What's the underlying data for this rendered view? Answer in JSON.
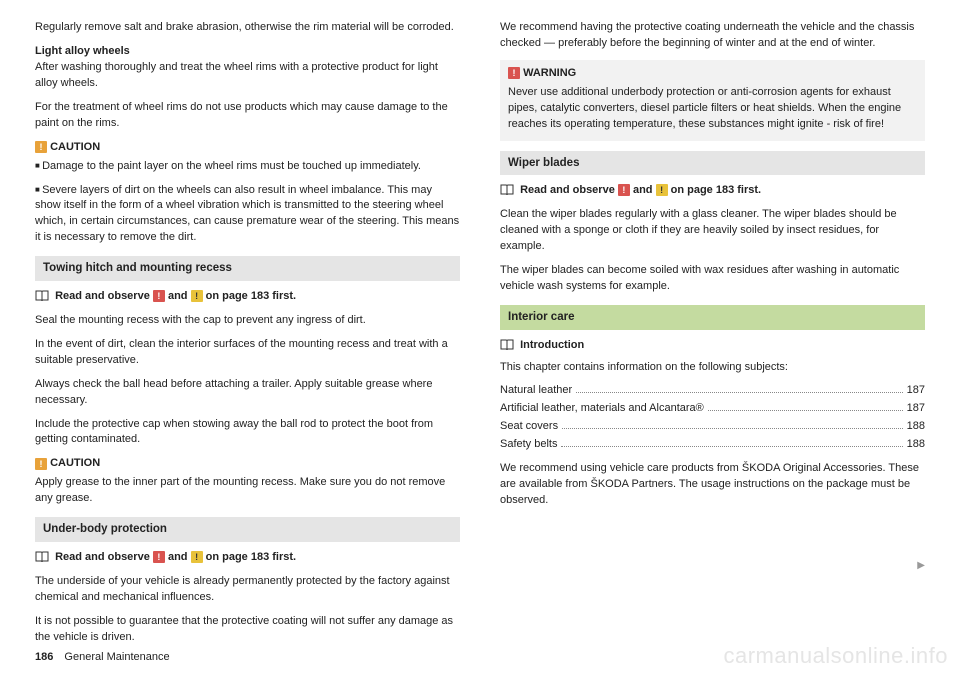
{
  "left": {
    "p1": "Regularly remove salt and brake abrasion, otherwise the rim material will be corroded.",
    "h1": "Light alloy wheels",
    "p2": "After washing thoroughly and treat the wheel rims with a protective product for light alloy wheels.",
    "p3": "For the treatment of wheel rims do not use products which may cause damage to the paint on the rims.",
    "caution1": "CAUTION",
    "c1a": "Damage to the paint layer on the wheel rims must be touched up immediately.",
    "c1b": "Severe layers of dirt on the wheels can also result in wheel imbalance. This may show itself in the form of a wheel vibration which is transmitted to the steering wheel which, in certain circumstances, can cause premature wear of the steering. This means it is necessary to remove the dirt.",
    "sec1": "Towing hitch and mounting recess",
    "read1a": "Read and observe ",
    "read1b": " and ",
    "read1c": " on page 183 first.",
    "p4": "Seal the mounting recess with the cap to prevent any ingress of dirt.",
    "p5": "In the event of dirt, clean the interior surfaces of the mounting recess and treat with a suitable preservative.",
    "p6": "Always check the ball head before attaching a trailer. Apply suitable grease where necessary.",
    "p7": "Include the protective cap when stowing away the ball rod to protect the boot from getting contaminated.",
    "caution2": "CAUTION",
    "c2": "Apply grease to the inner part of the mounting recess. Make sure you do not remove any grease.",
    "sec2": "Under-body protection",
    "read2a": "Read and observe ",
    "read2b": " and ",
    "read2c": " on page 183 first.",
    "p8": "The underside of your vehicle is already permanently protected by the factory against chemical and mechanical influences.",
    "p9": "It is not possible to guarantee that the protective coating will not suffer any damage as the vehicle is driven."
  },
  "right": {
    "p1": "We recommend having the protective coating underneath the vehicle and the chassis checked — preferably before the beginning of winter and at the end of winter.",
    "warnhead": "WARNING",
    "warnbody": "Never use additional underbody protection or anti-corrosion agents for exhaust pipes, catalytic converters, diesel particle filters or heat shields. When the engine reaches its operating temperature, these substances might ignite - risk of fire!",
    "sec1": "Wiper blades",
    "read1a": "Read and observe ",
    "read1b": " and ",
    "read1c": " on page 183 first.",
    "p2": "Clean the wiper blades regularly with a glass cleaner. The wiper blades should be cleaned with a sponge or cloth if they are heavily soiled by insect residues, for example.",
    "p3": "The wiper blades can become soiled with wax residues after washing in automatic vehicle wash systems for example.",
    "sec_green": "Interior care",
    "intro": "Introduction",
    "p4": "This chapter contains information on the following subjects:",
    "toc": [
      {
        "label": "Natural leather",
        "page": "187"
      },
      {
        "label": "Artificial leather, materials and Alcantara®",
        "page": "187"
      },
      {
        "label": "Seat covers",
        "page": "188"
      },
      {
        "label": "Safety belts",
        "page": "188"
      }
    ],
    "p5": "We recommend using vehicle care products from ŠKODA Original Accessories. These are available from ŠKODA Partners. The usage instructions on the package must be observed."
  },
  "footer": {
    "page": "186",
    "title": "General Maintenance"
  },
  "watermark": "carmanualsonline.info"
}
